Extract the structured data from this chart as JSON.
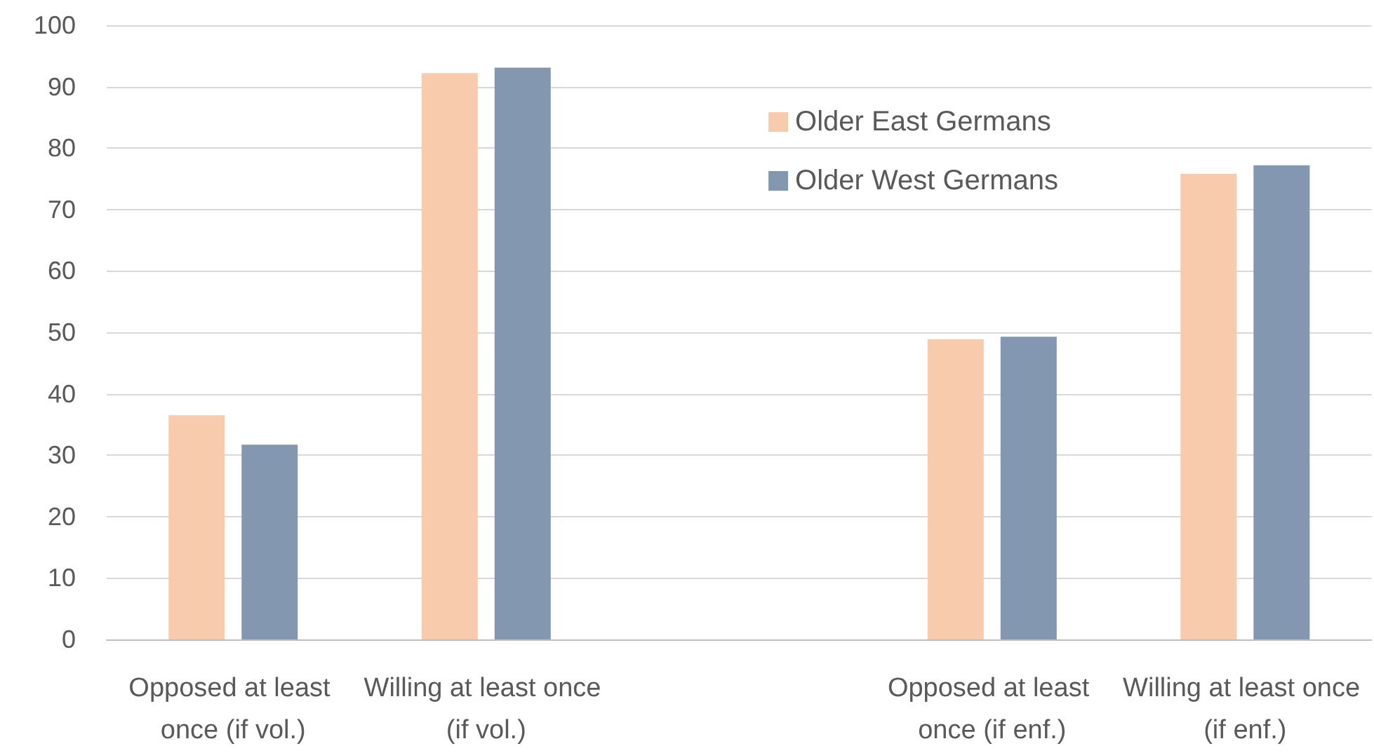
{
  "chart_data": {
    "type": "bar",
    "categories": [
      "Opposed at least once (if vol.)",
      "Willing at least once (if vol.)",
      null,
      "Opposed at least once (if enf.)",
      "Willing at least once (if enf.)"
    ],
    "series": [
      {
        "name": "Older East Germans",
        "color": "#f8cbad",
        "values": [
          36.5,
          92.2,
          null,
          48.9,
          75.8
        ]
      },
      {
        "name": "Older West Germans",
        "color": "#8497b0",
        "values": [
          31.7,
          93.1,
          null,
          49.3,
          77.2
        ]
      }
    ],
    "ylim": [
      0,
      100
    ],
    "yticks": [
      0,
      10,
      20,
      30,
      40,
      50,
      60,
      70,
      80,
      90,
      100
    ],
    "grid": "y",
    "legend": "top right"
  }
}
